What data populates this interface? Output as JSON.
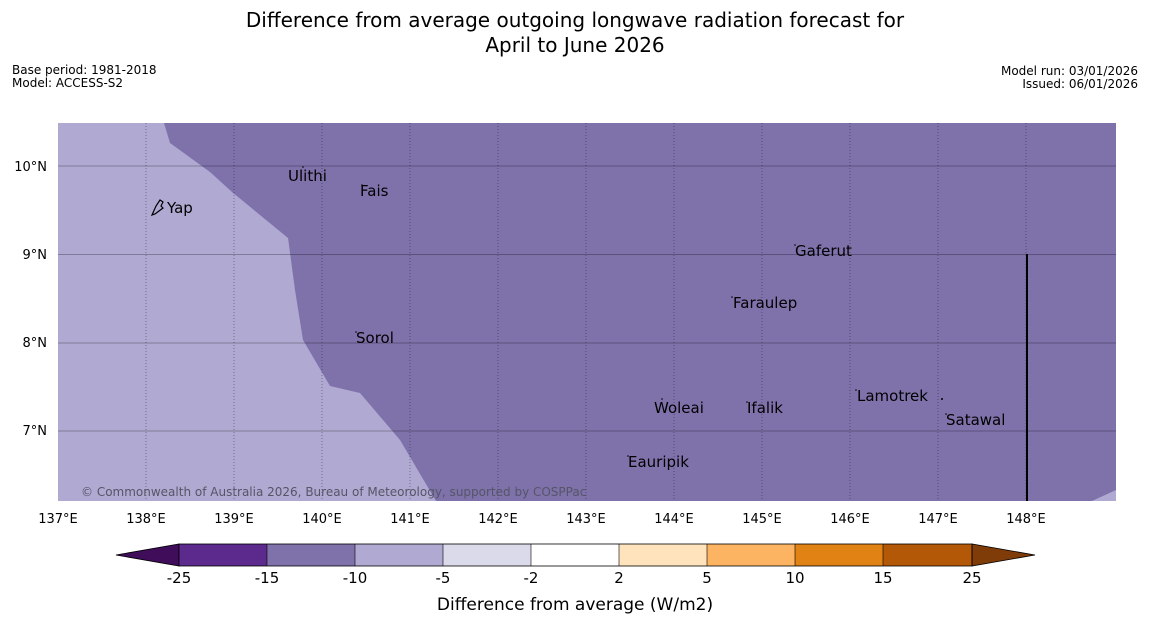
{
  "title_line1": "Difference from average outgoing longwave radiation forecast for",
  "title_line2": "April to June 2026",
  "left_meta": {
    "base_period": "Base period: 1981-2018",
    "model": "Model: ACCESS-S2"
  },
  "right_meta": {
    "model_run": "Model run: 03/01/2026",
    "issued": "Issued: 06/01/2026"
  },
  "map": {
    "lon_labels": [
      "137°E",
      "138°E",
      "139°E",
      "140°E",
      "141°E",
      "142°E",
      "143°E",
      "144°E",
      "145°E",
      "146°E",
      "147°E",
      "148°E"
    ],
    "lat_labels": [
      "10°N",
      "9°N",
      "8°N",
      "7°N"
    ],
    "copyright": "© Commonwealth of Australia 2026, Bureau of Meteorology, supported by COSPPac",
    "places": [
      {
        "name": "Yap"
      },
      {
        "name": "Ulithi"
      },
      {
        "name": "Fais"
      },
      {
        "name": "Gaferut"
      },
      {
        "name": "Faraulep"
      },
      {
        "name": "Sorol"
      },
      {
        "name": "Lamotrek"
      },
      {
        "name": "Woleai"
      },
      {
        "name": "Ifalik"
      },
      {
        "name": "Satawal"
      },
      {
        "name": "Eauripik"
      }
    ],
    "colors": {
      "dominant_band": "#7f72ab",
      "lighter_band": "#b0aad2"
    }
  },
  "colorbar": {
    "ticks": [
      "-25",
      "-15",
      "-10",
      "-5",
      "-2",
      "2",
      "5",
      "10",
      "15",
      "25"
    ],
    "label": "Difference from average (W/m2)",
    "colors": [
      "#3f0d5a",
      "#5b2a8c",
      "#7f72ab",
      "#b0aad2",
      "#dadaeb",
      "#ffffff",
      "#fee3bc",
      "#fdb462",
      "#e08214",
      "#b35806",
      "#7f3b08"
    ]
  }
}
